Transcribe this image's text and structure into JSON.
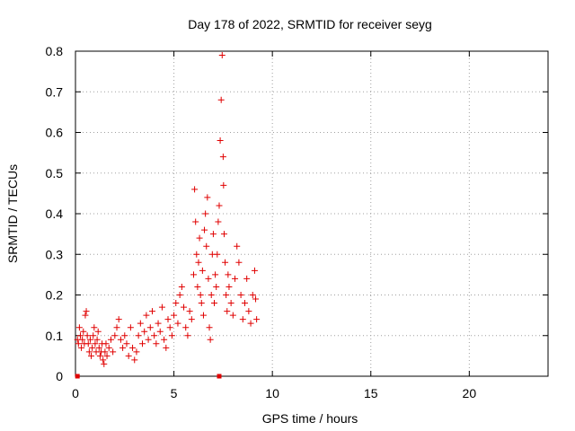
{
  "chart_data": {
    "type": "scatter",
    "title": "Day 178 of 2022, SRMTID for receiver seyg",
    "xlabel": "GPS time / hours",
    "ylabel": "SRMTID / TECUs",
    "xlim": [
      0,
      24
    ],
    "ylim": [
      0,
      0.8
    ],
    "xticks": [
      0,
      5,
      10,
      15,
      20
    ],
    "xtick_labels": [
      "0",
      "5",
      "10",
      "15",
      "20"
    ],
    "yticks": [
      0,
      0.1,
      0.2,
      0.3,
      0.4,
      0.5,
      0.6,
      0.7,
      0.8
    ],
    "ytick_labels": [
      "0",
      "0.1",
      "0.2",
      "0.3",
      "0.4",
      "0.5",
      "0.6",
      "0.7",
      "0.8"
    ],
    "grid": true,
    "marker": "plus",
    "color": "#e00000",
    "series": [
      {
        "name": "SRMTID",
        "points": [
          [
            0.1,
            0.09
          ],
          [
            0.15,
            0.08
          ],
          [
            0.2,
            0.12
          ],
          [
            0.25,
            0.1
          ],
          [
            0.3,
            0.07
          ],
          [
            0.35,
            0.09
          ],
          [
            0.4,
            0.11
          ],
          [
            0.45,
            0.08
          ],
          [
            0.5,
            0.15
          ],
          [
            0.55,
            0.16
          ],
          [
            0.6,
            0.1
          ],
          [
            0.65,
            0.08
          ],
          [
            0.7,
            0.06
          ],
          [
            0.75,
            0.09
          ],
          [
            0.8,
            0.05
          ],
          [
            0.85,
            0.07
          ],
          [
            0.9,
            0.1
          ],
          [
            0.95,
            0.12
          ],
          [
            1.0,
            0.08
          ],
          [
            1.05,
            0.06
          ],
          [
            1.1,
            0.09
          ],
          [
            1.15,
            0.11
          ],
          [
            1.2,
            0.07
          ],
          [
            1.25,
            0.05
          ],
          [
            1.3,
            0.06
          ],
          [
            1.35,
            0.08
          ],
          [
            1.4,
            0.04
          ],
          [
            1.45,
            0.03
          ],
          [
            1.5,
            0.06
          ],
          [
            1.55,
            0.08
          ],
          [
            1.6,
            0.05
          ],
          [
            1.7,
            0.07
          ],
          [
            1.8,
            0.09
          ],
          [
            1.9,
            0.06
          ],
          [
            2.0,
            0.1
          ],
          [
            2.1,
            0.12
          ],
          [
            2.2,
            0.14
          ],
          [
            2.3,
            0.09
          ],
          [
            2.4,
            0.07
          ],
          [
            2.5,
            0.1
          ],
          [
            2.6,
            0.08
          ],
          [
            2.7,
            0.05
          ],
          [
            2.8,
            0.12
          ],
          [
            2.9,
            0.07
          ],
          [
            3.0,
            0.04
          ],
          [
            3.1,
            0.06
          ],
          [
            3.2,
            0.1
          ],
          [
            3.3,
            0.13
          ],
          [
            3.4,
            0.08
          ],
          [
            3.5,
            0.11
          ],
          [
            3.6,
            0.15
          ],
          [
            3.7,
            0.09
          ],
          [
            3.8,
            0.12
          ],
          [
            3.9,
            0.16
          ],
          [
            4.0,
            0.1
          ],
          [
            4.1,
            0.08
          ],
          [
            4.2,
            0.13
          ],
          [
            4.3,
            0.11
          ],
          [
            4.4,
            0.17
          ],
          [
            4.5,
            0.09
          ],
          [
            4.6,
            0.07
          ],
          [
            4.7,
            0.14
          ],
          [
            4.8,
            0.12
          ],
          [
            4.9,
            0.1
          ],
          [
            5.0,
            0.15
          ],
          [
            5.1,
            0.18
          ],
          [
            5.2,
            0.13
          ],
          [
            5.3,
            0.2
          ],
          [
            5.4,
            0.22
          ],
          [
            5.5,
            0.17
          ],
          [
            5.6,
            0.12
          ],
          [
            5.7,
            0.1
          ],
          [
            5.8,
            0.16
          ],
          [
            5.9,
            0.14
          ],
          [
            6.0,
            0.25
          ],
          [
            6.05,
            0.46
          ],
          [
            6.1,
            0.38
          ],
          [
            6.15,
            0.3
          ],
          [
            6.2,
            0.22
          ],
          [
            6.25,
            0.28
          ],
          [
            6.3,
            0.34
          ],
          [
            6.35,
            0.2
          ],
          [
            6.4,
            0.18
          ],
          [
            6.45,
            0.26
          ],
          [
            6.5,
            0.15
          ],
          [
            6.55,
            0.36
          ],
          [
            6.6,
            0.4
          ],
          [
            6.65,
            0.32
          ],
          [
            6.7,
            0.44
          ],
          [
            6.75,
            0.24
          ],
          [
            6.8,
            0.12
          ],
          [
            6.85,
            0.09
          ],
          [
            6.9,
            0.2
          ],
          [
            6.95,
            0.3
          ],
          [
            7.0,
            0.35
          ],
          [
            7.05,
            0.18
          ],
          [
            7.1,
            0.25
          ],
          [
            7.15,
            0.22
          ],
          [
            7.2,
            0.3
          ],
          [
            7.25,
            0.38
          ],
          [
            7.3,
            0.42
          ],
          [
            7.35,
            0.58
          ],
          [
            7.4,
            0.68
          ],
          [
            7.45,
            0.79
          ],
          [
            7.5,
            0.54
          ],
          [
            7.52,
            0.47
          ],
          [
            7.55,
            0.35
          ],
          [
            7.6,
            0.28
          ],
          [
            7.65,
            0.2
          ],
          [
            7.7,
            0.16
          ],
          [
            7.75,
            0.25
          ],
          [
            7.8,
            0.22
          ],
          [
            7.9,
            0.18
          ],
          [
            8.0,
            0.15
          ],
          [
            8.1,
            0.24
          ],
          [
            8.2,
            0.32
          ],
          [
            8.3,
            0.28
          ],
          [
            8.4,
            0.2
          ],
          [
            8.5,
            0.14
          ],
          [
            8.6,
            0.18
          ],
          [
            8.7,
            0.24
          ],
          [
            8.8,
            0.16
          ],
          [
            8.9,
            0.13
          ],
          [
            9.0,
            0.2
          ],
          [
            9.1,
            0.26
          ],
          [
            9.15,
            0.19
          ],
          [
            9.2,
            0.14
          ]
        ]
      }
    ],
    "square_markers": [
      [
        0.1,
        0
      ],
      [
        7.3,
        0
      ]
    ]
  }
}
